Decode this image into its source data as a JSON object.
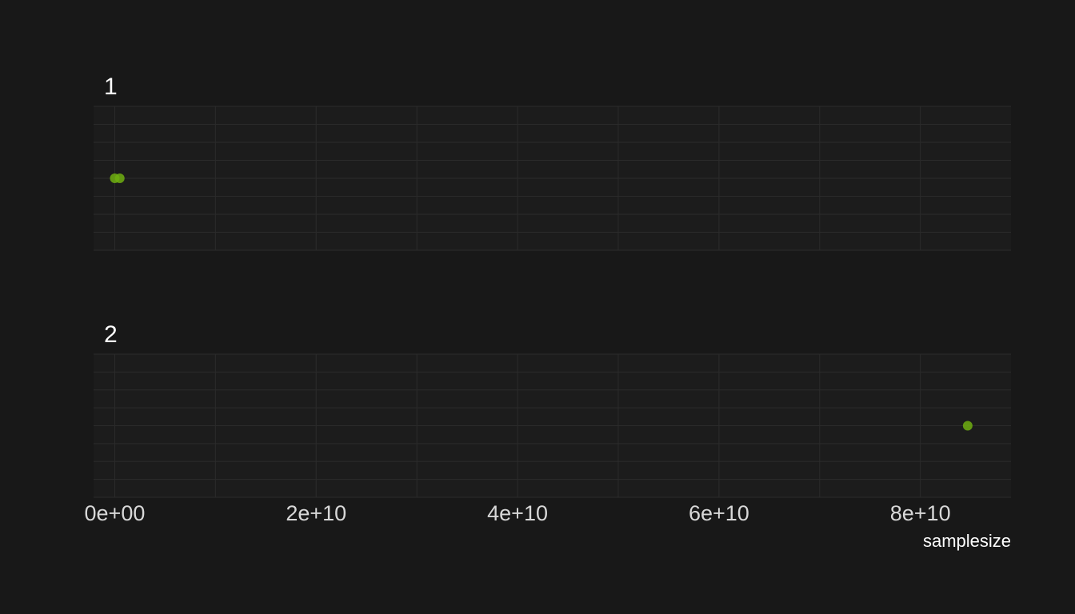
{
  "chart_data": {
    "type": "scatter",
    "xlabel": "samplesize",
    "ylabel": "",
    "xlim": [
      -2100000000.0,
      89000000000.0
    ],
    "x_ticks": [
      {
        "value": 0,
        "label": "0e+00"
      },
      {
        "value": 20000000000.0,
        "label": "2e+10"
      },
      {
        "value": 40000000000.0,
        "label": "4e+10"
      },
      {
        "value": 60000000000.0,
        "label": "6e+10"
      },
      {
        "value": 80000000000.0,
        "label": "8e+10"
      }
    ],
    "x_minor_ticks": [
      10000000000.0,
      30000000000.0,
      50000000000.0,
      70000000000.0
    ],
    "grid": true,
    "facets": [
      {
        "label": "1",
        "points": [
          {
            "x": 0,
            "y": 0
          },
          {
            "x": 500000000,
            "y": 0
          }
        ]
      },
      {
        "label": "2",
        "points": [
          {
            "x": 84700000000,
            "y": 0
          }
        ]
      }
    ],
    "colors": {
      "background": "#181818",
      "panel": "#1c1c1c",
      "grid": "#2b2b2b",
      "point": "#6fae10",
      "text": "#e8e8e8"
    }
  }
}
